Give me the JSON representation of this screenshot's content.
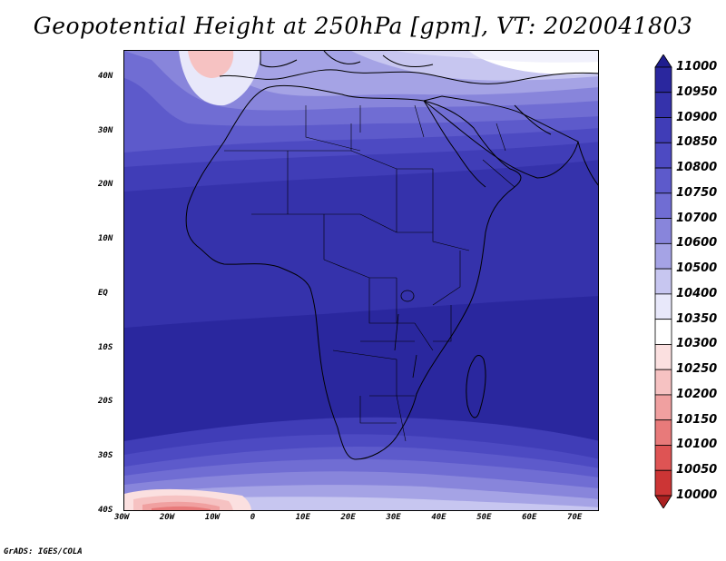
{
  "title": "Geopotential Height at 250hPa [gpm], VT: 2020041803",
  "credit": "GrADS: IGES/COLA",
  "map": {
    "lon_range": [
      -30,
      75
    ],
    "lat_range": [
      -40,
      45
    ],
    "lon_ticks": [
      "30W",
      "20W",
      "10W",
      "0",
      "10E",
      "20E",
      "30E",
      "40E",
      "50E",
      "60E",
      "70E"
    ],
    "lat_ticks": [
      "40N",
      "30N",
      "20N",
      "10N",
      "EQ",
      "10S",
      "20S",
      "30S",
      "40S"
    ]
  },
  "colorbar": {
    "levels": [
      "11000",
      "10950",
      "10900",
      "10850",
      "10800",
      "10750",
      "10700",
      "10600",
      "10500",
      "10400",
      "10350",
      "10300",
      "10250",
      "10200",
      "10150",
      "10100",
      "10050",
      "10000"
    ],
    "colors": [
      "#1f1d8f",
      "#2a279e",
      "#3532ab",
      "#403db7",
      "#4d4ac2",
      "#5d5acb",
      "#706dd3",
      "#8885db",
      "#a5a3e5",
      "#c7c6f0",
      "#e8e8fa",
      "#ffffff",
      "#fbe0e0",
      "#f6c2c2",
      "#f0a0a0",
      "#e87a7a",
      "#de5454",
      "#cc3535",
      "#aa2020"
    ]
  }
}
